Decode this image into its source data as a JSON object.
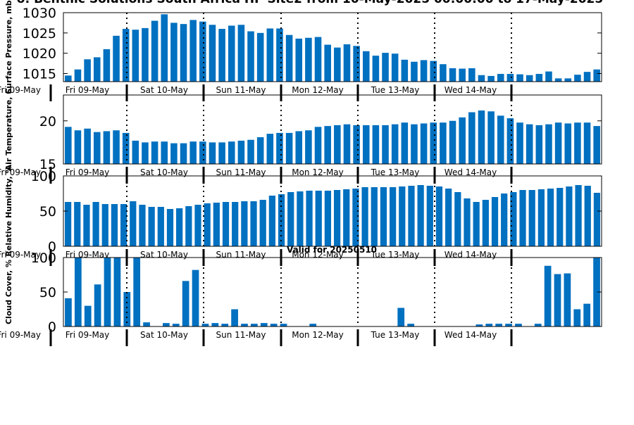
{
  "title": "o: Benthic Solutions South Africa HP Site2 from 10-May-2025 00:00:00 to 17-May-2025",
  "valid_label": "Valid for 20250510",
  "colors": {
    "bar": "#0070C0",
    "axis": "#000000",
    "background": "#FFFFFF"
  },
  "chart_data": [
    {
      "type": "bar",
      "ylabel": "Surface Pressure, mb",
      "ylim": [
        1013,
        1030
      ],
      "yticks": [
        1015,
        1020,
        1025,
        1030
      ],
      "first_tick_label": "Fri 09-May",
      "day_labels": [
        "Fri 09-May",
        "Sat 10-May",
        "Sun 11-May",
        "Mon 12-May",
        "Tue 13-May",
        "Wed 14-May"
      ],
      "values": [
        1014.5,
        1016,
        1018.5,
        1019,
        1021,
        1024.3,
        1026,
        1025.8,
        1026.2,
        1028,
        1029.6,
        1027.5,
        1027.2,
        1028.2,
        1027.8,
        1027,
        1026,
        1026.8,
        1027,
        1025.4,
        1025,
        1026.1,
        1026.1,
        1024.5,
        1023.6,
        1023.8,
        1024,
        1022.1,
        1021.4,
        1022.2,
        1021.8,
        1020.5,
        1019.4,
        1020.1,
        1019.9,
        1018.4,
        1017.9,
        1018.3,
        1018.1,
        1017.3,
        1016.3,
        1016.2,
        1016.3,
        1014.6,
        1014.4,
        1014.9,
        1014.9,
        1014.8,
        1014.6,
        1014.9,
        1015.5,
        1013.8,
        1013.8,
        1014.7,
        1015.4,
        1016
      ]
    },
    {
      "type": "bar",
      "ylabel": "Air Temperature, C",
      "ylim": [
        15,
        23
      ],
      "yticks": [
        15,
        20
      ],
      "first_tick_label": "Fri 09-May",
      "day_labels": [
        "Fri 09-May",
        "Sat 10-May",
        "Sun 11-May",
        "Mon 12-May",
        "Tue 13-May",
        "Wed 14-May"
      ],
      "values": [
        19.3,
        18.9,
        19.1,
        18.7,
        18.8,
        18.9,
        18.6,
        17.7,
        17.5,
        17.6,
        17.6,
        17.4,
        17.4,
        17.6,
        17.6,
        17.5,
        17.5,
        17.6,
        17.7,
        17.8,
        18.1,
        18.5,
        18.6,
        18.6,
        18.8,
        18.9,
        19.3,
        19.4,
        19.5,
        19.6,
        19.5,
        19.5,
        19.5,
        19.5,
        19.6,
        19.8,
        19.6,
        19.7,
        19.8,
        19.8,
        20.0,
        20.4,
        21.0,
        21.2,
        21.1,
        20.6,
        20.3,
        19.8,
        19.6,
        19.5,
        19.6,
        19.8,
        19.7,
        19.8,
        19.8,
        19.4
      ]
    },
    {
      "type": "bar",
      "ylabel": "Relative Humidity, %",
      "ylim": [
        0,
        100
      ],
      "yticks": [
        0,
        50,
        100
      ],
      "first_tick_label": "Fri 09-May",
      "day_labels": [
        "Fri 09-May",
        "Sat 10-May",
        "Sun 11-May",
        "Mon 12-May",
        "Tue 13-May",
        "Wed 14-May"
      ],
      "values": [
        63,
        63,
        59,
        63,
        60,
        60,
        60,
        64,
        59,
        56,
        56,
        53,
        54,
        57,
        59,
        61,
        62,
        63,
        63,
        64,
        64,
        66,
        72,
        74,
        77,
        78,
        79,
        79,
        79,
        80,
        81,
        82,
        84,
        84,
        84,
        84,
        85,
        86,
        87,
        86,
        85,
        82,
        77,
        68,
        63,
        66,
        70,
        75,
        77,
        80,
        80,
        81,
        82,
        83,
        85,
        87,
        86,
        76
      ]
    },
    {
      "type": "bar",
      "ylabel": "Cloud Cover, %",
      "ylim": [
        0,
        100
      ],
      "yticks": [
        0,
        50,
        100
      ],
      "first_tick_label": "Fri 09-May",
      "day_labels": [
        "Fri 09-May",
        "Sat 10-May",
        "Sun 11-May",
        "Mon 12-May",
        "Tue 13-May",
        "Wed 14-May"
      ],
      "values": [
        41,
        100,
        30,
        61,
        100,
        100,
        50,
        100,
        6,
        0,
        5,
        4,
        66,
        82,
        4,
        5,
        4,
        25,
        4,
        4,
        5,
        4,
        4,
        0,
        0,
        4,
        0,
        0,
        0,
        0,
        0,
        0,
        0,
        0,
        27,
        4,
        0,
        0,
        0,
        0,
        0,
        0,
        3,
        4,
        4,
        4,
        4,
        0,
        4,
        88,
        76,
        77,
        25,
        33,
        100
      ]
    }
  ]
}
